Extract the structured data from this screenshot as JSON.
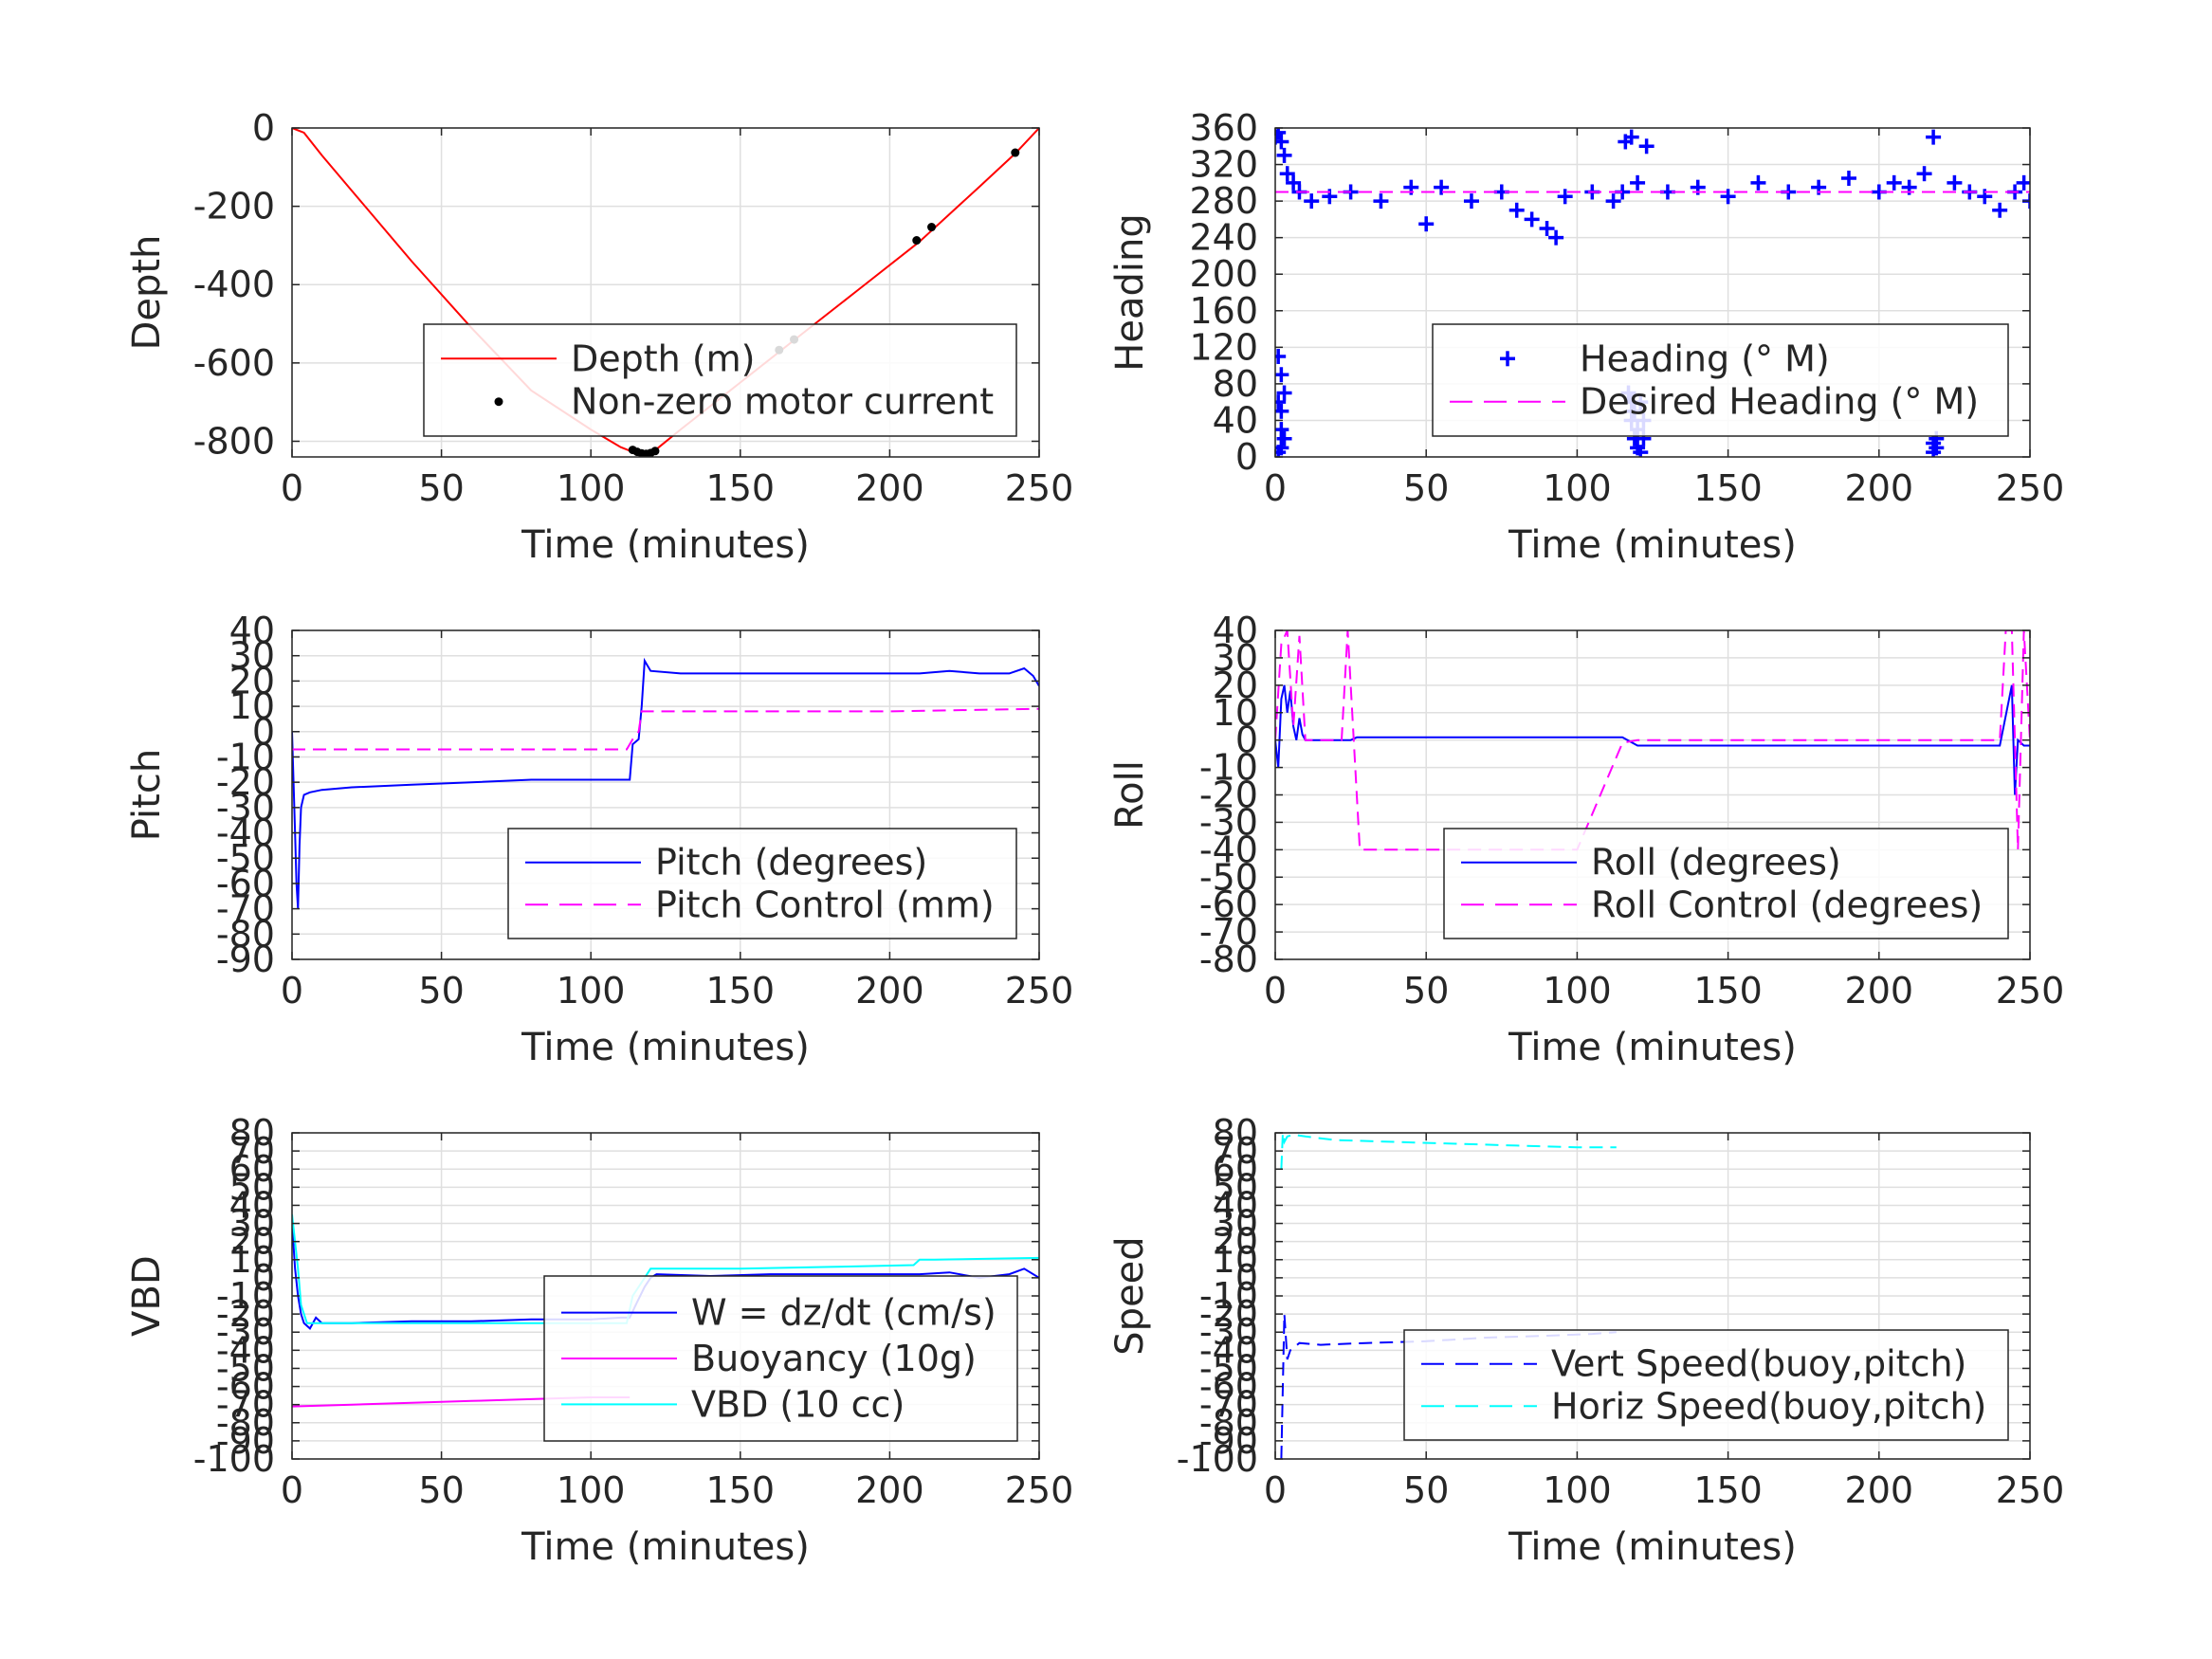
{
  "chart_data": [
    {
      "type": "line",
      "xlabel": "Time (minutes)",
      "ylabel": "Depth",
      "xlim": [
        0,
        250
      ],
      "ylim": [
        -840,
        0
      ],
      "xticks": [
        0,
        50,
        100,
        150,
        200,
        250
      ],
      "yticks": [
        -800,
        -600,
        -400,
        -200,
        0
      ],
      "grid": true,
      "legend_position": "bottom-right",
      "series": [
        {
          "name": "Depth (m)",
          "color": "#ff0000",
          "style": "solid",
          "x": [
            0,
            4,
            10,
            20,
            40,
            60,
            80,
            100,
            110,
            115,
            118,
            122,
            130,
            150,
            170,
            190,
            210,
            230,
            242,
            250
          ],
          "y": [
            0,
            -12,
            -70,
            -160,
            -340,
            -510,
            -670,
            -770,
            -815,
            -830,
            -832,
            -820,
            -770,
            -650,
            -530,
            -410,
            -290,
            -150,
            -65,
            0
          ]
        },
        {
          "name": "Non-zero motor current",
          "color": "#000000",
          "style": "marker-dot",
          "x": [
            114,
            115.5,
            117,
            118.5,
            120,
            121.5,
            163,
            168,
            209,
            214,
            242
          ],
          "y": [
            -822,
            -827,
            -831,
            -832,
            -830,
            -825,
            -567,
            -540,
            -287,
            -253,
            -63
          ]
        }
      ]
    },
    {
      "type": "scatter",
      "xlabel": "Time (minutes)",
      "ylabel": "Heading",
      "xlim": [
        0,
        250
      ],
      "ylim": [
        0,
        360
      ],
      "xticks": [
        0,
        50,
        100,
        150,
        200,
        250
      ],
      "yticks": [
        0,
        40,
        80,
        120,
        160,
        200,
        240,
        280,
        320,
        360
      ],
      "grid": true,
      "legend_position": "bottom-right",
      "series": [
        {
          "name": "Heading (° M)",
          "color": "#0000ff",
          "style": "marker-plus",
          "x": [
            0,
            1,
            2,
            3,
            4,
            6,
            8,
            12,
            18,
            25,
            35,
            45,
            50,
            55,
            65,
            75,
            80,
            85,
            90,
            93,
            96,
            105,
            112,
            115,
            116,
            118,
            120,
            123,
            130,
            140,
            150,
            160,
            170,
            180,
            190,
            200,
            205,
            210,
            215,
            218,
            225,
            230,
            235,
            240,
            245,
            248,
            250
          ],
          "y": [
            350,
            355,
            345,
            330,
            310,
            300,
            290,
            280,
            285,
            290,
            280,
            295,
            255,
            295,
            280,
            290,
            270,
            260,
            250,
            240,
            285,
            290,
            280,
            290,
            345,
            350,
            300,
            340,
            290,
            295,
            285,
            300,
            290,
            295,
            305,
            290,
            300,
            295,
            310,
            350,
            300,
            290,
            285,
            270,
            290,
            300,
            280
          ]
        },
        {
          "name": "",
          "color": "#0000ff",
          "style": "marker-plus",
          "x": [
            1,
            1,
            1,
            2,
            2,
            2,
            2,
            3,
            3,
            117,
            118,
            118,
            119,
            119,
            120,
            120,
            121,
            121,
            122,
            122,
            218,
            218,
            219,
            219
          ],
          "y": [
            110,
            60,
            5,
            90,
            50,
            30,
            10,
            70,
            20,
            70,
            60,
            40,
            50,
            20,
            30,
            10,
            60,
            5,
            40,
            20,
            5,
            15,
            10,
            20
          ]
        },
        {
          "name": "Desired Heading (° M)",
          "color": "#ff00ff",
          "style": "dashed",
          "x": [
            0,
            250
          ],
          "y": [
            290,
            290
          ]
        }
      ]
    },
    {
      "type": "line",
      "xlabel": "Time (minutes)",
      "ylabel": "Pitch",
      "xlim": [
        0,
        250
      ],
      "ylim": [
        -90,
        40
      ],
      "xticks": [
        0,
        50,
        100,
        150,
        200,
        250
      ],
      "yticks": [
        -90,
        -80,
        -70,
        -60,
        -50,
        -40,
        -30,
        -20,
        -10,
        0,
        10,
        20,
        30,
        40
      ],
      "grid": true,
      "legend_position": "bottom-right",
      "series": [
        {
          "name": "Pitch (degrees)",
          "color": "#0000ff",
          "style": "solid",
          "x": [
            0,
            1,
            1.5,
            2,
            2.5,
            3,
            4,
            6,
            10,
            20,
            40,
            60,
            80,
            100,
            110,
            113,
            114,
            116,
            117,
            118,
            120,
            130,
            150,
            170,
            190,
            205,
            210,
            220,
            230,
            240,
            245,
            248,
            250
          ],
          "y": [
            0,
            -40,
            -60,
            -70,
            -45,
            -30,
            -25,
            -24,
            -23,
            -22,
            -21,
            -20,
            -19,
            -19,
            -19,
            -19,
            -5,
            -3,
            10,
            28,
            24,
            23,
            23,
            23,
            23,
            23,
            23,
            24,
            23,
            23,
            25,
            22,
            18
          ]
        },
        {
          "name": "Pitch Control (mm)",
          "color": "#ff00ff",
          "style": "dashed",
          "x": [
            0,
            110,
            112,
            114,
            116,
            117,
            200,
            250
          ],
          "y": [
            -7,
            -7,
            -7,
            -3,
            0,
            8,
            8,
            9
          ]
        }
      ]
    },
    {
      "type": "line",
      "xlabel": "Time (minutes)",
      "ylabel": "Roll",
      "xlim": [
        0,
        250
      ],
      "ylim": [
        -80,
        40
      ],
      "xticks": [
        0,
        50,
        100,
        150,
        200,
        250
      ],
      "yticks": [
        -80,
        -70,
        -60,
        -50,
        -40,
        -30,
        -20,
        -10,
        0,
        10,
        20,
        30,
        40
      ],
      "grid": true,
      "legend_position": "bottom-right",
      "series": [
        {
          "name": "Roll (degrees)",
          "color": "#0000ff",
          "style": "solid",
          "x": [
            0,
            1,
            2,
            3,
            4,
            5,
            6,
            7,
            8,
            9,
            10,
            15,
            20,
            25,
            27,
            40,
            60,
            80,
            100,
            115,
            120,
            140,
            160,
            180,
            200,
            220,
            240,
            244,
            245,
            246,
            248,
            250
          ],
          "y": [
            0,
            -10,
            15,
            20,
            10,
            18,
            5,
            0,
            8,
            2,
            0,
            0,
            0,
            0,
            1,
            1,
            1,
            1,
            1,
            1,
            -2,
            -2,
            -2,
            -2,
            -2,
            -2,
            -2,
            20,
            -20,
            0,
            -2,
            -2
          ]
        },
        {
          "name": "Roll Control (degrees)",
          "color": "#ff00ff",
          "style": "dashed",
          "x": [
            0,
            2,
            4,
            6,
            8,
            10,
            12,
            18,
            22,
            24,
            26,
            28,
            40,
            60,
            80,
            100,
            115,
            120,
            160,
            200,
            240,
            242,
            244,
            246,
            248,
            250
          ],
          "y": [
            0,
            35,
            40,
            5,
            38,
            0,
            0,
            0,
            0,
            40,
            0,
            -40,
            -40,
            -40,
            -40,
            -40,
            -1,
            0,
            0,
            0,
            0,
            40,
            40,
            -40,
            40,
            0
          ]
        }
      ]
    },
    {
      "type": "line",
      "xlabel": "Time (minutes)",
      "ylabel": "VBD",
      "xlim": [
        0,
        250
      ],
      "ylim": [
        -100,
        80
      ],
      "xticks": [
        0,
        50,
        100,
        150,
        200,
        250
      ],
      "yticks": [
        -100,
        -90,
        -80,
        -70,
        -60,
        -50,
        -40,
        -30,
        -20,
        -10,
        0,
        10,
        20,
        30,
        40,
        50,
        60,
        70,
        80
      ],
      "grid": true,
      "legend_position": "bottom-right",
      "series": [
        {
          "name": "W = dz/dt (cm/s)",
          "color": "#0000ff",
          "style": "solid",
          "x": [
            0,
            1,
            2,
            3,
            4,
            6,
            8,
            10,
            20,
            40,
            60,
            80,
            100,
            110,
            113,
            115,
            118,
            120,
            122,
            140,
            160,
            180,
            200,
            210,
            220,
            230,
            240,
            245,
            250
          ],
          "y": [
            30,
            5,
            -10,
            -20,
            -25,
            -28,
            -22,
            -25,
            -25,
            -24,
            -24,
            -23,
            -23,
            -22,
            -22,
            -15,
            -5,
            0,
            2,
            1,
            2,
            2,
            2,
            2,
            3,
            0,
            2,
            5,
            0
          ]
        },
        {
          "name": "Buoyancy (10g)",
          "color": "#ff00ff",
          "style": "solid",
          "x": [
            0,
            20,
            40,
            60,
            80,
            100,
            113
          ],
          "y": [
            -71,
            -70,
            -69,
            -68,
            -67,
            -66,
            -66
          ]
        },
        {
          "name": "VBD (10 cc)",
          "color": "#00ffff",
          "style": "solid",
          "x": [
            0,
            2,
            3,
            5,
            10,
            30,
            60,
            90,
            112,
            114,
            118,
            120,
            125,
            150,
            180,
            208,
            210,
            215,
            250
          ],
          "y": [
            35,
            5,
            -15,
            -25,
            -25,
            -25,
            -25,
            -25,
            -25,
            -10,
            0,
            5,
            5,
            5,
            6,
            7,
            10,
            10,
            11
          ]
        }
      ]
    },
    {
      "type": "line",
      "xlabel": "Time (minutes)",
      "ylabel": "Speed",
      "xlim": [
        0,
        250
      ],
      "ylim": [
        -100,
        80
      ],
      "xticks": [
        0,
        50,
        100,
        150,
        200,
        250
      ],
      "yticks": [
        -100,
        -90,
        -80,
        -70,
        -60,
        -50,
        -40,
        -30,
        -20,
        -10,
        0,
        10,
        20,
        30,
        40,
        50,
        60,
        70,
        80
      ],
      "grid": true,
      "legend_position": "bottom-right",
      "series": [
        {
          "name": "Vert Speed(buoy,pitch)",
          "color": "#0000ff",
          "style": "dashed",
          "x": [
            2,
            2.5,
            3,
            4,
            5,
            8,
            15,
            30,
            50,
            70,
            90,
            105,
            113
          ],
          "y": [
            -100,
            -60,
            -20,
            -45,
            -40,
            -36,
            -37,
            -36,
            -35,
            -33,
            -32,
            -31,
            -30
          ]
        },
        {
          "name": "Horiz Speed(buoy,pitch)",
          "color": "#00ffff",
          "style": "dashed",
          "x": [
            2,
            2.5,
            3,
            4,
            6,
            10,
            20,
            40,
            60,
            80,
            100,
            113
          ],
          "y": [
            60,
            80,
            75,
            78,
            79,
            78,
            76,
            75,
            74,
            73,
            72,
            72
          ]
        }
      ]
    }
  ]
}
